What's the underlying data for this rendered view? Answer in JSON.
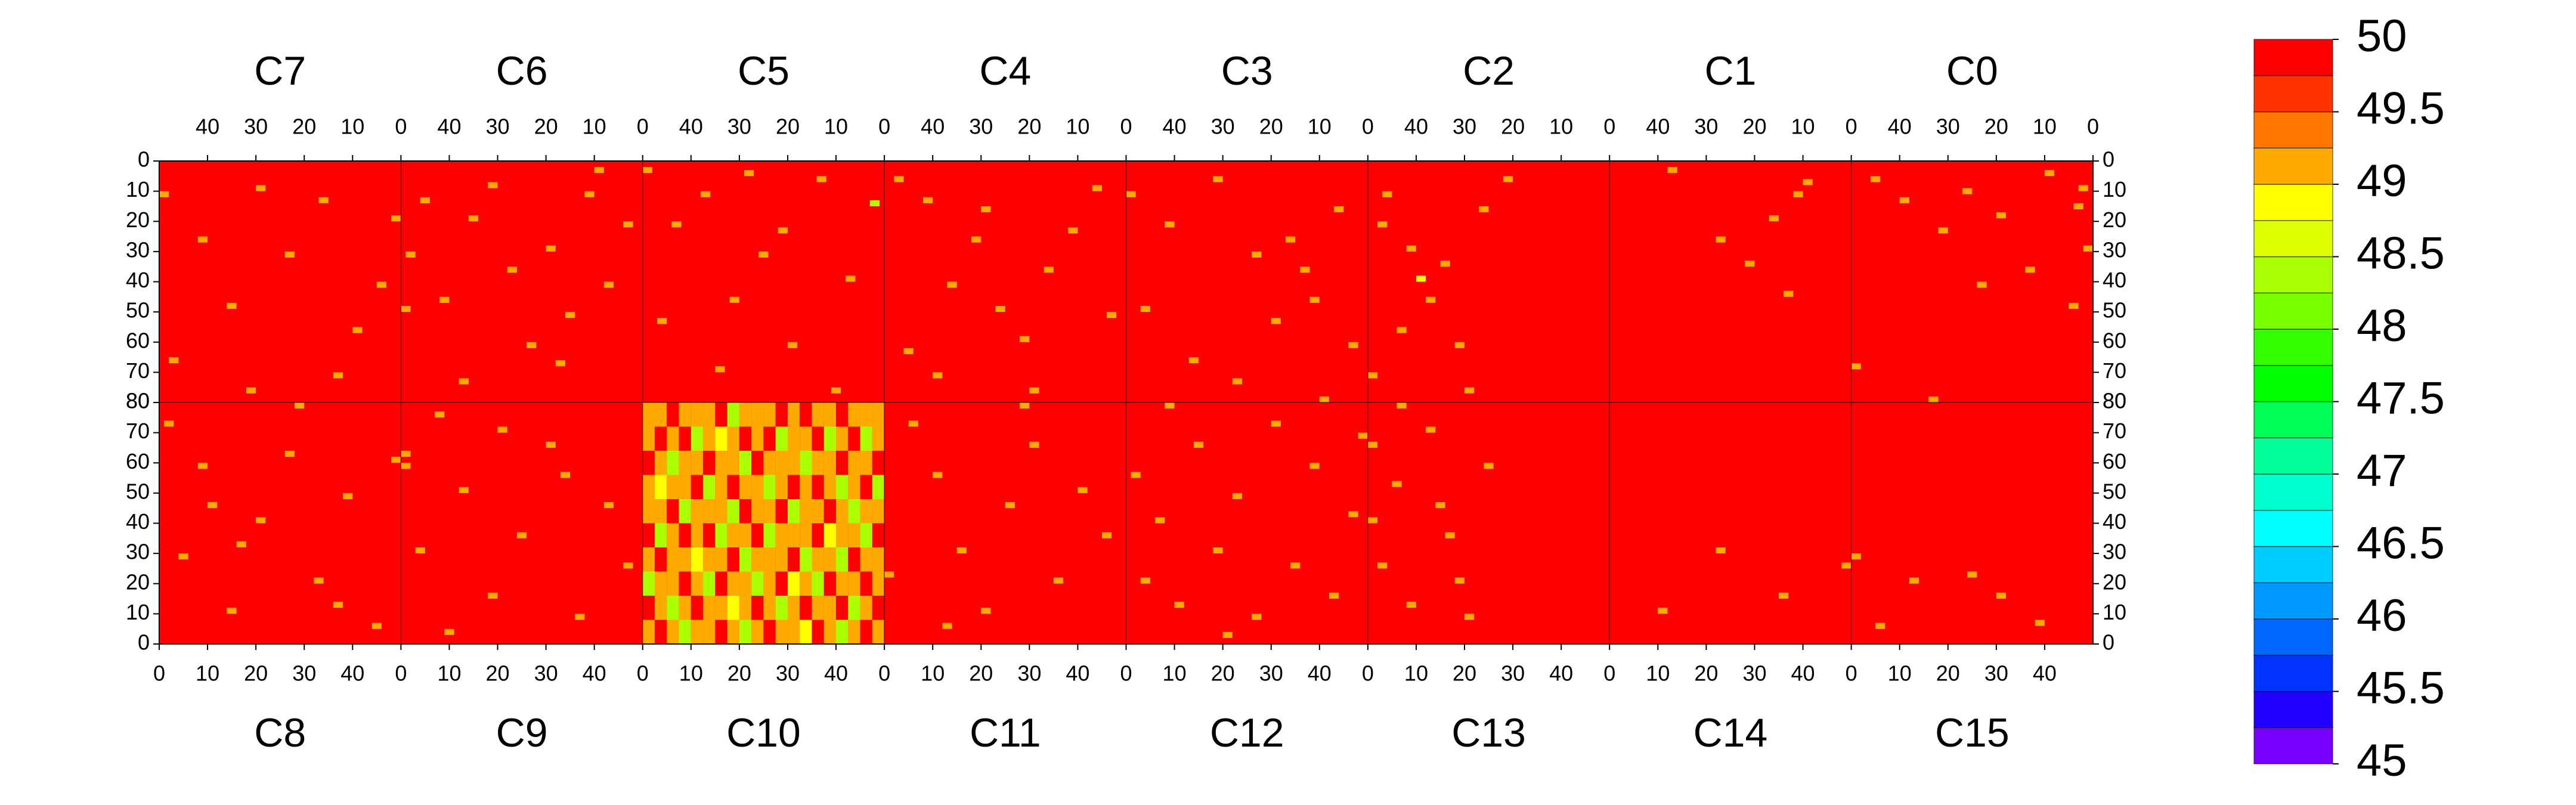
{
  "chart_data": {
    "type": "heatmap",
    "xlim": [
      0,
      50
    ],
    "ylim": [
      0,
      80
    ],
    "xticks": [
      0,
      10,
      20,
      30,
      40
    ],
    "yticks": [
      0,
      10,
      20,
      30,
      40,
      50,
      60,
      70,
      80
    ],
    "colorbar": {
      "lim": [
        45,
        50
      ],
      "ticks": [
        45,
        45.5,
        46,
        46.5,
        47,
        47.5,
        48,
        48.5,
        49,
        49.5,
        50
      ],
      "colors": [
        "#7700ff",
        "#2200ff",
        "#0033ff",
        "#0066ff",
        "#0099ff",
        "#00ccff",
        "#00ffff",
        "#00ffcc",
        "#00ff99",
        "#00ff55",
        "#00ff00",
        "#33ff00",
        "#77ff00",
        "#aaff00",
        "#ddff00",
        "#ffff00",
        "#ffaa00",
        "#ff7700",
        "#ff3300",
        "#ff0000"
      ]
    },
    "panels": [
      {
        "name": "C0",
        "base": 50,
        "points": [
          [
            1,
            8,
            49.1
          ],
          [
            2,
            14,
            49.1
          ],
          [
            0,
            28,
            49.1
          ],
          [
            3,
            47,
            49.1
          ],
          [
            44,
            5,
            49.1
          ],
          [
            38,
            12,
            49.1
          ],
          [
            30,
            22,
            49.1
          ],
          [
            25,
            9,
            49.1
          ],
          [
            18,
            17,
            49.1
          ],
          [
            12,
            35,
            49.1
          ],
          [
            48,
            67,
            49.1
          ],
          [
            32,
            78,
            49.1
          ],
          [
            8,
            3,
            49.1
          ],
          [
            22,
            40,
            49.1
          ]
        ]
      },
      {
        "name": "C1",
        "base": 50,
        "points": [
          [
            10,
            10,
            49.1
          ],
          [
            15,
            18,
            49.1
          ],
          [
            20,
            33,
            49.1
          ],
          [
            12,
            43,
            49.1
          ],
          [
            26,
            25,
            49.1
          ],
          [
            8,
            6,
            49.1
          ],
          [
            36,
            2,
            49.1
          ]
        ]
      },
      {
        "name": "C2",
        "base": 50,
        "points": [
          [
            45,
            10,
            49.1
          ],
          [
            40,
            28,
            49.1
          ],
          [
            33,
            33,
            49.1
          ],
          [
            30,
            60,
            49.1
          ],
          [
            42,
            55,
            49.1
          ],
          [
            20,
            5,
            49.1
          ],
          [
            25,
            15,
            49.1
          ],
          [
            48,
            70,
            49.1
          ],
          [
            36,
            45,
            49.1
          ],
          [
            28,
            75,
            49.1
          ],
          [
            46,
            20,
            49.1
          ],
          [
            38,
            38,
            48.9
          ]
        ]
      },
      {
        "name": "C3",
        "base": 50,
        "points": [
          [
            45,
            48,
            49.1
          ],
          [
            40,
            20,
            49.1
          ],
          [
            30,
            5,
            49.1
          ],
          [
            22,
            30,
            49.1
          ],
          [
            18,
            52,
            49.1
          ],
          [
            10,
            45,
            49.1
          ],
          [
            5,
            15,
            49.1
          ],
          [
            35,
            65,
            49.1
          ],
          [
            26,
            72,
            49.1
          ],
          [
            12,
            35,
            49.1
          ],
          [
            2,
            60,
            49.1
          ],
          [
            48,
            10,
            49.1
          ],
          [
            15,
            25,
            49.1
          ],
          [
            8,
            78,
            49.1
          ]
        ]
      },
      {
        "name": "C4",
        "base": 50,
        "points": [
          [
            46,
            5,
            49.1
          ],
          [
            40,
            12,
            49.1
          ],
          [
            35,
            40,
            49.1
          ],
          [
            30,
            25,
            49.1
          ],
          [
            25,
            48,
            49.1
          ],
          [
            20,
            58,
            49.1
          ],
          [
            15,
            35,
            49.1
          ],
          [
            10,
            22,
            49.1
          ],
          [
            5,
            8,
            49.1
          ],
          [
            44,
            62,
            49.1
          ],
          [
            38,
            70,
            49.1
          ],
          [
            28,
            15,
            49.1
          ],
          [
            18,
            75,
            49.1
          ],
          [
            2,
            50,
            49.1
          ]
        ]
      },
      {
        "name": "C5",
        "base": 50,
        "points": [
          [
            48,
            2,
            49.1
          ],
          [
            42,
            20,
            49.1
          ],
          [
            36,
            10,
            49.1
          ],
          [
            30,
            45,
            49.1
          ],
          [
            24,
            30,
            49.1
          ],
          [
            18,
            60,
            49.1
          ],
          [
            12,
            5,
            49.1
          ],
          [
            6,
            38,
            49.1
          ],
          [
            1,
            13,
            48.4
          ],
          [
            45,
            52,
            49.1
          ],
          [
            33,
            68,
            49.1
          ],
          [
            20,
            22,
            49.1
          ],
          [
            9,
            75,
            49.1
          ],
          [
            27,
            3,
            49.1
          ]
        ]
      },
      {
        "name": "C6",
        "base": 50,
        "points": [
          [
            47,
            30,
            49.1
          ],
          [
            44,
            12,
            49.1
          ],
          [
            40,
            45,
            49.1
          ],
          [
            34,
            18,
            49.1
          ],
          [
            30,
            7,
            49.1
          ],
          [
            26,
            35,
            49.1
          ],
          [
            22,
            60,
            49.1
          ],
          [
            18,
            28,
            49.1
          ],
          [
            14,
            50,
            49.1
          ],
          [
            10,
            10,
            49.1
          ],
          [
            6,
            40,
            49.1
          ],
          [
            2,
            20,
            49.1
          ],
          [
            36,
            72,
            49.1
          ],
          [
            16,
            66,
            49.1
          ],
          [
            48,
            48,
            49.1
          ],
          [
            8,
            2,
            49.1
          ]
        ]
      },
      {
        "name": "C7",
        "base": 50,
        "points": [
          [
            0,
            18,
            49.1
          ],
          [
            3,
            40,
            49.1
          ],
          [
            8,
            55,
            49.1
          ],
          [
            15,
            12,
            49.1
          ],
          [
            22,
            30,
            49.1
          ],
          [
            28,
            8,
            49.1
          ],
          [
            34,
            47,
            49.1
          ],
          [
            40,
            25,
            49.1
          ],
          [
            46,
            65,
            49.1
          ],
          [
            12,
            70,
            49.1
          ],
          [
            30,
            75,
            49.1
          ],
          [
            48,
            10,
            49.1
          ]
        ]
      },
      {
        "name": "C8",
        "base": 50,
        "points": [
          [
            1,
            72,
            49.1
          ],
          [
            4,
            28,
            49.1
          ],
          [
            8,
            58,
            49.1
          ],
          [
            14,
            10,
            49.1
          ],
          [
            20,
            40,
            49.1
          ],
          [
            26,
            62,
            49.1
          ],
          [
            32,
            20,
            49.1
          ],
          [
            38,
            48,
            49.1
          ],
          [
            44,
            5,
            49.1
          ],
          [
            16,
            32,
            49.1
          ],
          [
            48,
            60,
            49.1
          ],
          [
            28,
            78,
            49.1
          ],
          [
            10,
            45,
            49.1
          ],
          [
            36,
            12,
            49.1
          ]
        ]
      },
      {
        "name": "C9",
        "base": 50,
        "points": [
          [
            0,
            62,
            49.1
          ],
          [
            0,
            58,
            49.1
          ],
          [
            3,
            30,
            49.1
          ],
          [
            7,
            75,
            49.1
          ],
          [
            12,
            50,
            49.1
          ],
          [
            18,
            15,
            49.1
          ],
          [
            24,
            35,
            49.1
          ],
          [
            30,
            65,
            49.1
          ],
          [
            36,
            8,
            49.1
          ],
          [
            42,
            45,
            49.1
          ],
          [
            46,
            25,
            49.1
          ],
          [
            20,
            70,
            49.1
          ],
          [
            9,
            3,
            49.1
          ],
          [
            33,
            55,
            49.1
          ]
        ]
      },
      {
        "name": "C10",
        "base": 50,
        "grid": [
          [
            49.1,
            49.8,
            49.1,
            48.4,
            49.1,
            49.1,
            49.8,
            49.1,
            48.4,
            49.1,
            49.8,
            49.1,
            49.1,
            48.9,
            49.8,
            49.1,
            48.4,
            49.1,
            49.8,
            49.1
          ],
          [
            49.8,
            49.1,
            48.4,
            49.1,
            49.8,
            49.1,
            49.1,
            48.9,
            49.1,
            49.8,
            49.1,
            48.4,
            49.1,
            49.8,
            49.1,
            49.1,
            49.8,
            48.4,
            49.1,
            49.8
          ],
          [
            48.4,
            49.1,
            49.1,
            49.8,
            49.1,
            48.4,
            49.8,
            49.1,
            49.1,
            48.4,
            49.1,
            49.8,
            48.9,
            49.1,
            48.4,
            49.8,
            49.1,
            49.1,
            49.8,
            49.1
          ],
          [
            49.1,
            49.8,
            49.1,
            49.1,
            48.9,
            49.1,
            49.1,
            49.8,
            48.4,
            49.1,
            49.1,
            49.1,
            49.8,
            48.4,
            49.1,
            49.1,
            48.4,
            49.8,
            49.1,
            49.1
          ],
          [
            49.8,
            48.4,
            49.1,
            49.8,
            49.1,
            49.8,
            48.4,
            49.1,
            49.1,
            49.8,
            48.4,
            49.1,
            49.1,
            49.1,
            49.8,
            48.9,
            49.1,
            49.1,
            48.4,
            49.8
          ],
          [
            49.1,
            49.1,
            49.8,
            48.4,
            49.1,
            49.1,
            49.1,
            48.4,
            49.8,
            49.1,
            49.1,
            49.8,
            48.4,
            49.1,
            49.1,
            49.8,
            49.1,
            48.4,
            49.1,
            49.1
          ],
          [
            49.1,
            48.9,
            49.1,
            49.1,
            49.8,
            48.4,
            49.1,
            49.8,
            49.1,
            49.1,
            48.4,
            49.1,
            49.8,
            49.1,
            49.8,
            49.1,
            48.4,
            49.1,
            49.8,
            48.4
          ],
          [
            49.8,
            49.1,
            48.4,
            49.1,
            49.1,
            49.8,
            49.1,
            49.1,
            48.4,
            49.8,
            49.1,
            49.1,
            49.1,
            48.4,
            49.1,
            49.1,
            49.8,
            49.1,
            49.1,
            49.8
          ],
          [
            49.1,
            49.8,
            49.1,
            49.8,
            48.4,
            49.1,
            48.9,
            49.1,
            49.8,
            49.1,
            49.8,
            48.4,
            49.1,
            49.1,
            49.8,
            48.4,
            49.1,
            49.8,
            48.4,
            49.1
          ],
          [
            49.1,
            49.1,
            49.8,
            49.1,
            49.1,
            49.1,
            49.8,
            48.4,
            49.1,
            49.1,
            49.1,
            49.8,
            49.1,
            49.8,
            49.1,
            49.1,
            49.8,
            49.1,
            49.1,
            49.1
          ]
        ]
      },
      {
        "name": "C11",
        "base": 50,
        "points": [
          [
            0,
            22,
            49.1
          ],
          [
            5,
            72,
            49.1
          ],
          [
            10,
            55,
            49.1
          ],
          [
            15,
            30,
            49.1
          ],
          [
            20,
            10,
            49.1
          ],
          [
            25,
            45,
            49.1
          ],
          [
            30,
            65,
            49.1
          ],
          [
            35,
            20,
            49.1
          ],
          [
            40,
            50,
            49.1
          ],
          [
            45,
            35,
            49.1
          ],
          [
            12,
            5,
            49.1
          ],
          [
            28,
            78,
            49.1
          ]
        ]
      },
      {
        "name": "C12",
        "base": 50,
        "points": [
          [
            1,
            55,
            49.1
          ],
          [
            3,
            20,
            49.1
          ],
          [
            6,
            40,
            49.1
          ],
          [
            10,
            12,
            49.1
          ],
          [
            14,
            65,
            49.1
          ],
          [
            18,
            30,
            49.1
          ],
          [
            22,
            48,
            49.1
          ],
          [
            26,
            8,
            49.1
          ],
          [
            30,
            72,
            49.1
          ],
          [
            34,
            25,
            49.1
          ],
          [
            38,
            58,
            49.1
          ],
          [
            42,
            15,
            49.1
          ],
          [
            46,
            42,
            49.1
          ],
          [
            48,
            68,
            49.1
          ],
          [
            20,
            2,
            49.1
          ],
          [
            8,
            78,
            49.1
          ]
        ]
      },
      {
        "name": "C13",
        "base": 50,
        "points": [
          [
            0,
            65,
            49.1
          ],
          [
            0,
            40,
            49.1
          ],
          [
            2,
            25,
            49.1
          ],
          [
            5,
            52,
            49.1
          ],
          [
            8,
            12,
            49.1
          ],
          [
            12,
            70,
            49.1
          ],
          [
            16,
            35,
            49.1
          ],
          [
            20,
            8,
            49.1
          ],
          [
            24,
            58,
            49.1
          ],
          [
            14,
            45,
            49.1
          ],
          [
            6,
            78,
            49.1
          ],
          [
            18,
            20,
            49.1
          ]
        ]
      },
      {
        "name": "C14",
        "base": 50,
        "points": [
          [
            10,
            10,
            49.1
          ],
          [
            22,
            30,
            49.1
          ],
          [
            35,
            15,
            49.1
          ],
          [
            48,
            25,
            49.1
          ]
        ]
      },
      {
        "name": "C15",
        "base": 50,
        "points": [
          [
            0,
            28,
            49.1
          ],
          [
            5,
            5,
            49.1
          ],
          [
            12,
            20,
            49.1
          ],
          [
            24,
            22,
            49.1
          ],
          [
            38,
            6,
            49.1
          ],
          [
            30,
            15,
            49.1
          ]
        ]
      }
    ]
  }
}
